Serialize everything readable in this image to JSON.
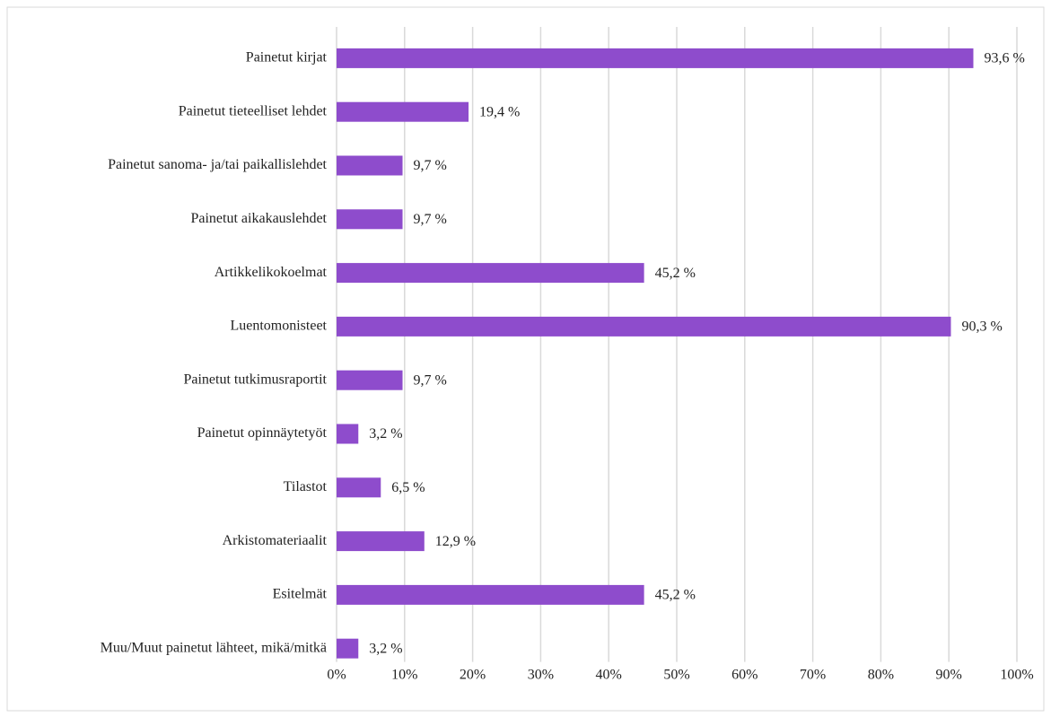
{
  "chart_data": {
    "type": "barh",
    "categories": [
      "Painetut kirjat",
      "Painetut tieteelliset lehdet",
      "Painetut sanoma- ja/tai paikallislehdet",
      "Painetut aikakauslehdet",
      "Artikkelikokoelmat",
      "Luentomonisteet",
      "Painetut tutkimusraportit",
      "Painetut opinnäytetyöt",
      "Tilastot",
      "Arkistomateriaalit",
      "Esitelmät",
      "Muu/Muut painetut lähteet, mikä/mitkä"
    ],
    "values": [
      93.6,
      19.4,
      9.7,
      9.7,
      45.2,
      90.3,
      9.7,
      3.2,
      6.5,
      12.9,
      45.2,
      3.2
    ],
    "value_labels": [
      "93,6 %",
      "19,4 %",
      "9,7 %",
      "9,7 %",
      "45,2 %",
      "90,3 %",
      "9,7 %",
      "3,2 %",
      "6,5 %",
      "12,9 %",
      "45,2 %",
      "3,2 %"
    ],
    "color": "#8e4ccc",
    "xlim": [
      0,
      100
    ],
    "xticks": [
      {
        "value": 0,
        "label": "0%"
      },
      {
        "value": 10,
        "label": "10%"
      },
      {
        "value": 20,
        "label": "20%"
      },
      {
        "value": 30,
        "label": "30%"
      },
      {
        "value": 40,
        "label": "40%"
      },
      {
        "value": 50,
        "label": "50%"
      },
      {
        "value": 60,
        "label": "60%"
      },
      {
        "value": 70,
        "label": "70%"
      },
      {
        "value": 80,
        "label": "80%"
      },
      {
        "value": 90,
        "label": "90%"
      },
      {
        "value": 100,
        "label": "100%"
      }
    ],
    "grid": true
  }
}
